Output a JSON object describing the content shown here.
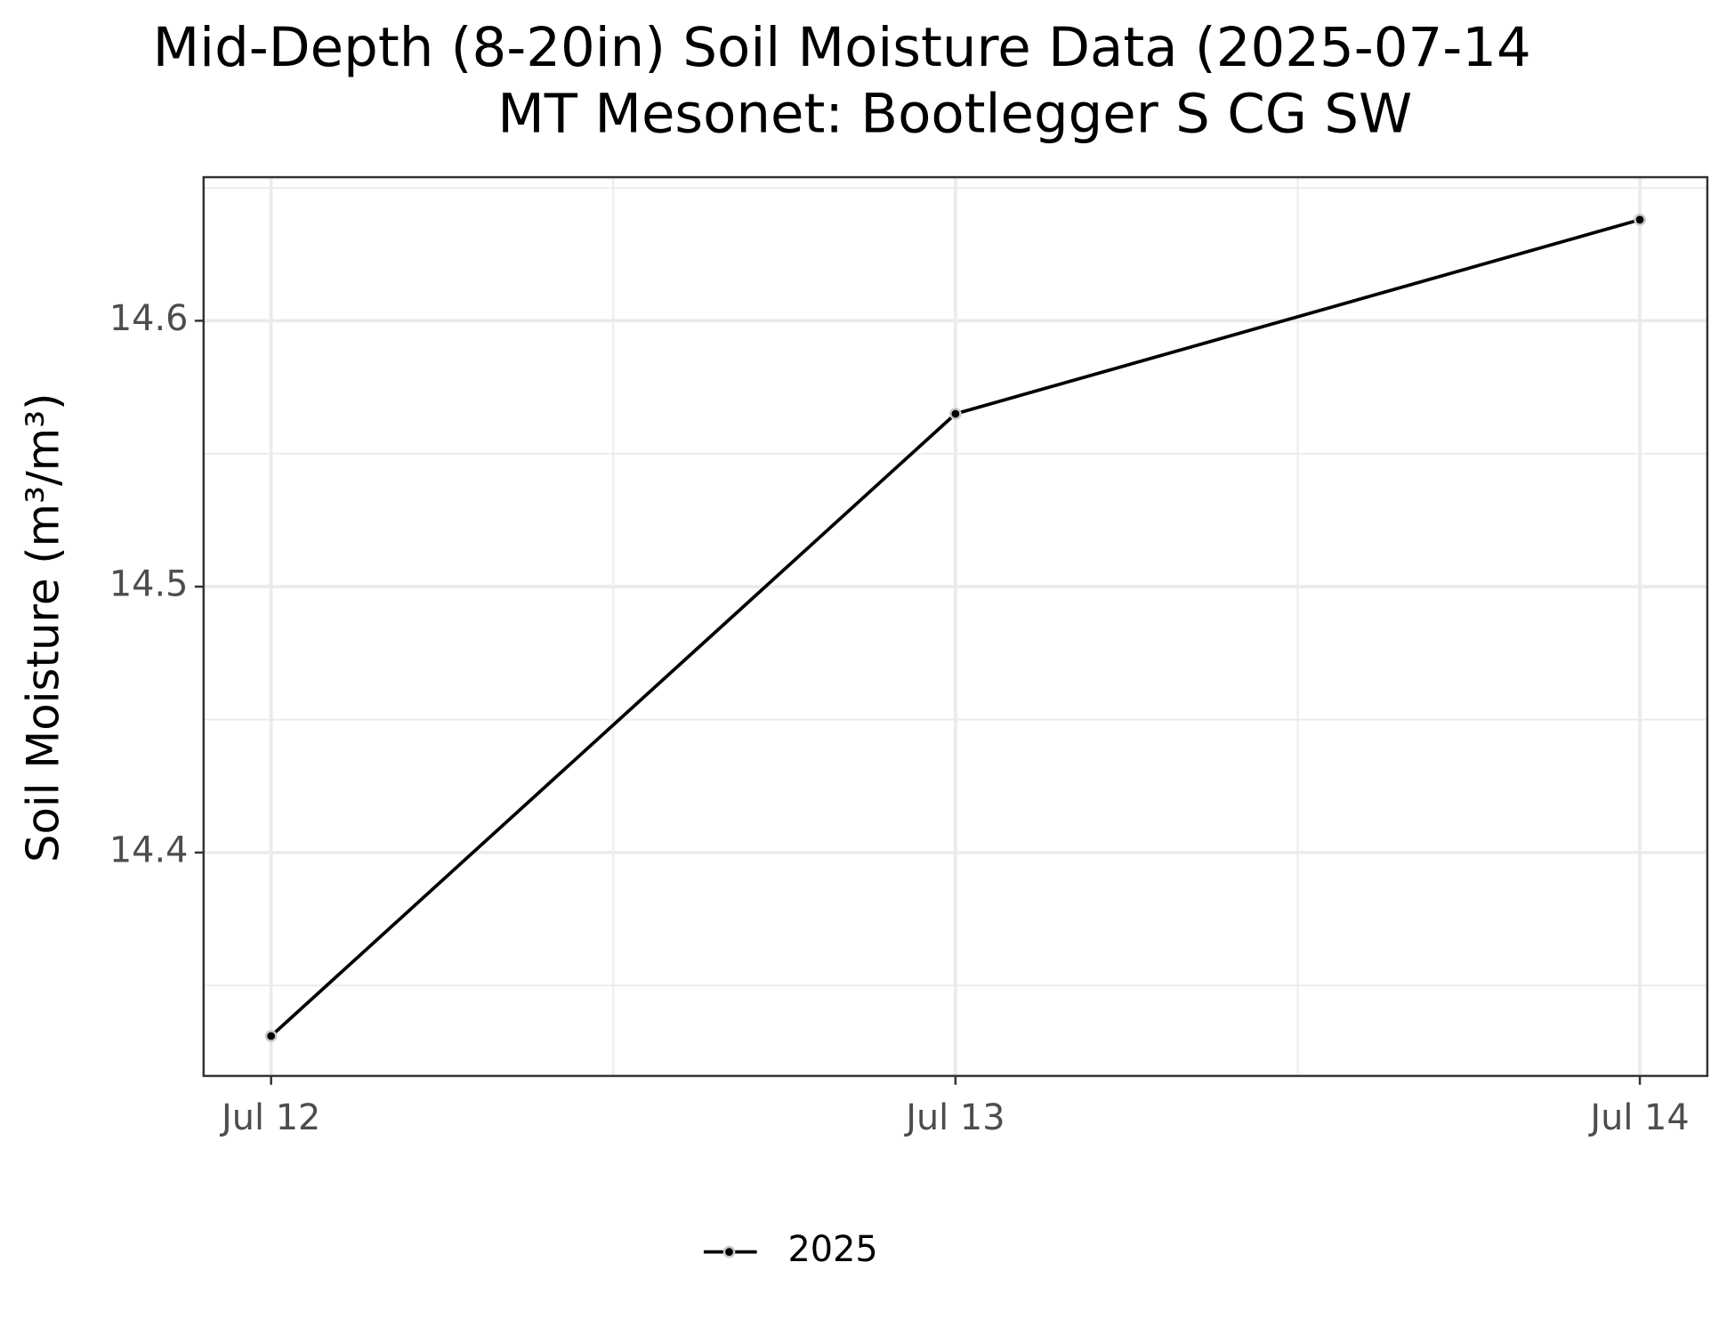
{
  "chart_data": {
    "type": "line",
    "title": "Mid-Depth (8-20in) Soil Moisture Data (2025-07-14",
    "subtitle": "MT Mesonet: Bootlegger S CG SW",
    "y_label": "Soil Moisture (m³/m³)",
    "categories": [
      "Jul 12",
      "Jul 13",
      "Jul 14"
    ],
    "series": [
      {
        "name": "2025",
        "color": "#000000",
        "values": [
          14.331,
          14.565,
          14.638
        ]
      }
    ],
    "ylim": [
      14.316,
      14.654
    ],
    "yticks": [
      14.4,
      14.5,
      14.6
    ],
    "grid": true,
    "legend": "bottom"
  }
}
